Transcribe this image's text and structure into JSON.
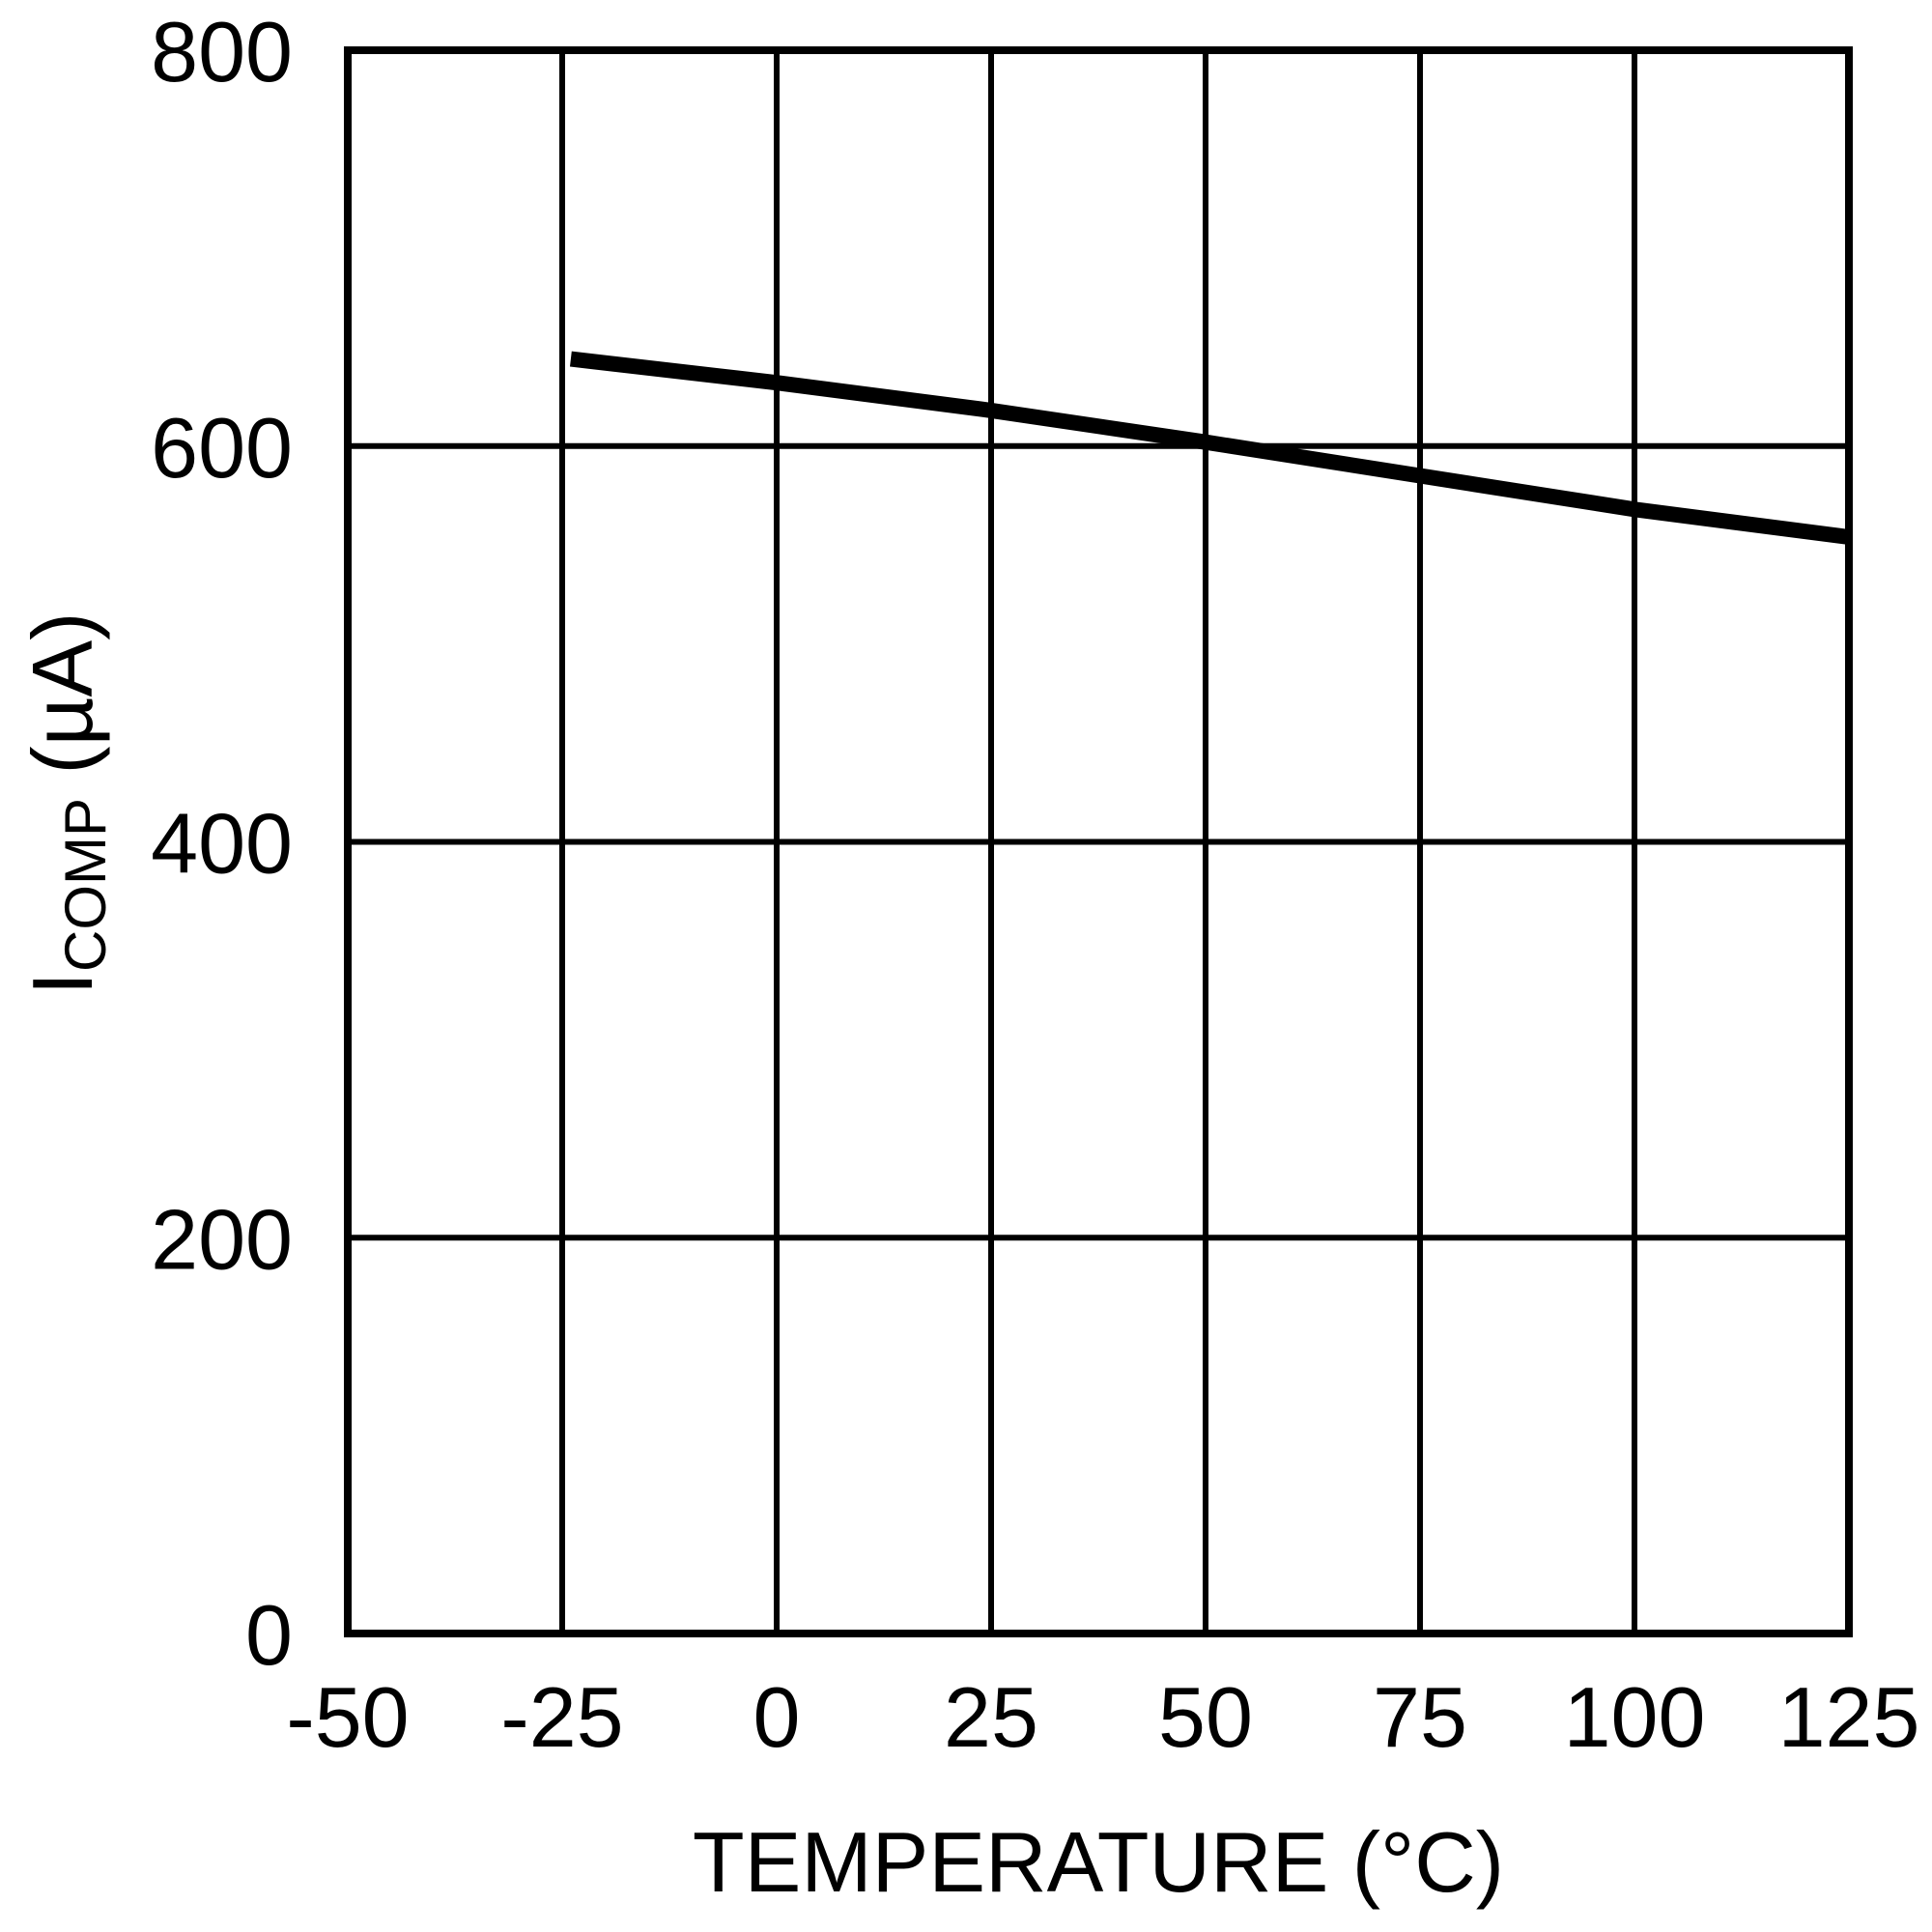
{
  "chart_data": {
    "type": "line",
    "title": "",
    "xlabel": "TEMPERATURE (°C)",
    "ylabel": {
      "main": "I",
      "subscript": "COMP",
      "unit": " (µA)"
    },
    "xlim": [
      -50,
      125
    ],
    "ylim": [
      0,
      800
    ],
    "xticks": [
      -50,
      -25,
      0,
      25,
      50,
      75,
      100,
      125
    ],
    "yticks": [
      0,
      200,
      400,
      600,
      800
    ],
    "grid": true,
    "legend": null,
    "series": [
      {
        "name": "ICOMP",
        "color": "#000000",
        "x": [
          -24,
          0,
          25,
          50,
          75,
          100,
          125
        ],
        "y": [
          644,
          632,
          618,
          602,
          585,
          568,
          554
        ]
      }
    ]
  },
  "colors": {
    "background": "#ffffff",
    "frame": "#000000",
    "grid": "#000000",
    "line": "#000000"
  }
}
